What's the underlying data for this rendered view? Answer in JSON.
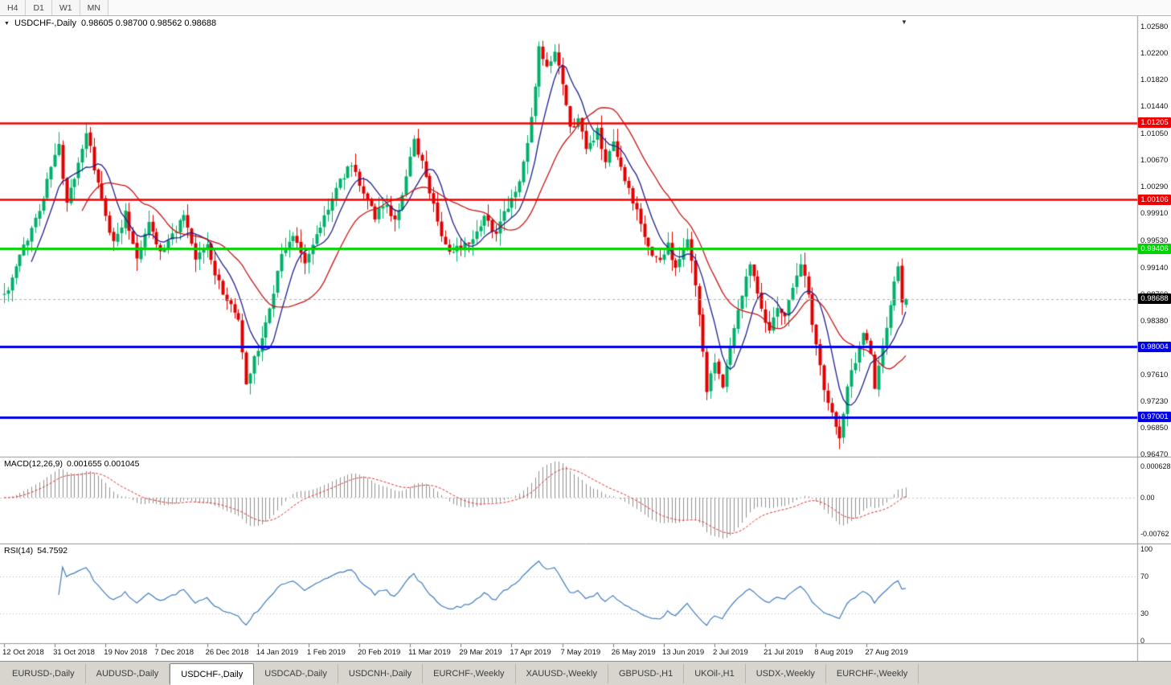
{
  "toolbar": {
    "timeframes": [
      "H4",
      "D1",
      "W1",
      "MN"
    ]
  },
  "chart": {
    "symbol_label": "USDCHF-,Daily",
    "ohlc_label": "0.98605 0.98700 0.98562 0.98688"
  },
  "macd_panel": {
    "label": "MACD(12,26,9)",
    "values_label": "0.001655 0.001045",
    "axis_labels": [
      "0.0006286",
      "0.00",
      "-0.00762"
    ]
  },
  "rsi_panel": {
    "label": "RSI(14)",
    "value_label": "54.7592",
    "axis_labels": [
      "100",
      "70",
      "30",
      "0"
    ]
  },
  "tabs": {
    "active_index": 2,
    "items": [
      "EURUSD-,Daily",
      "AUDUSD-,Daily",
      "USDCHF-,Daily",
      "USDCAD-,Daily",
      "USDCNH-,Daily",
      "EURCHF-,Weekly",
      "XAUUSD-,Weekly",
      "GBPUSD-,H1",
      "UKOil-,H1",
      "USDX-,Weekly",
      "EURCHF-,Weekly"
    ],
    "active_label": "USDCHF-,Daily"
  },
  "chart_data": {
    "type": "candlestick",
    "symbol": "USDCHF",
    "timeframe": "Daily",
    "ohlc": {
      "open": 0.98605,
      "high": 0.987,
      "low": 0.98562,
      "close": 0.98688
    },
    "current_price": 0.98688,
    "current_price_label": "0.98688",
    "y_ticks": [
      "1.02580",
      "1.02200",
      "1.01820",
      "1.01440",
      "1.01050",
      "1.00670",
      "1.00290",
      "0.99910",
      "0.99530",
      "0.99140",
      "0.98760",
      "0.98380",
      "0.98000",
      "0.97610",
      "0.97230",
      "0.96850",
      "0.96470"
    ],
    "x_labels": [
      "12 Oct 2018",
      "31 Oct 2018",
      "19 Nov 2018",
      "7 Dec 2018",
      "26 Dec 2018",
      "14 Jan 2019",
      "1 Feb 2019",
      "20 Feb 2019",
      "11 Mar 2019",
      "29 Mar 2019",
      "17 Apr 2019",
      "7 May 2019",
      "26 May 2019",
      "13 Jun 2019",
      "2 Jul 2019",
      "21 Jul 2019",
      "8 Aug 2019",
      "27 Aug 2019"
    ],
    "candles_per_xlabel": 13,
    "candle_count": 232,
    "price_range_labels": [
      0.9647,
      1.0258
    ],
    "horizontal_lines": [
      {
        "price": 1.01205,
        "label": "1.01205",
        "color": "#ee0000",
        "width": 2.5
      },
      {
        "price": 1.00106,
        "label": "1.00106",
        "color": "#ee0000",
        "width": 2.5
      },
      {
        "price": 0.99406,
        "label": "0.99406",
        "color": "#00d400",
        "width": 3
      },
      {
        "price": 0.98004,
        "label": "0.98004",
        "color": "#0000e6",
        "width": 3
      },
      {
        "price": 0.97001,
        "label": "0.97001",
        "color": "#0000e6",
        "width": 3
      }
    ],
    "colors": {
      "up": "#00b06a",
      "down": "#e00000"
    },
    "moving_averages": [
      {
        "period": 8,
        "color": "#1e1e8f"
      },
      {
        "period": 21,
        "color": "#c81414"
      }
    ],
    "macd": {
      "fast": 12,
      "slow": 26,
      "signal_period": 9,
      "current": 0.001655,
      "current_signal": 0.001045,
      "histogram_color": "#8f8f8f",
      "signal_color": "#e03030"
    },
    "rsi": {
      "period": 14,
      "current": 54.7592,
      "levels": [
        70,
        30
      ],
      "color": "#3f7cc0"
    },
    "seed": 42,
    "waypoints": [
      [
        0,
        0.9875
      ],
      [
        2,
        0.9895
      ],
      [
        4,
        0.993
      ],
      [
        6,
        0.9955
      ],
      [
        8,
        0.9985
      ],
      [
        10,
        1.0015
      ],
      [
        12,
        1.006
      ],
      [
        14,
        1.0085
      ],
      [
        16,
        1.0005
      ],
      [
        18,
        1.004
      ],
      [
        21,
        1.0108
      ],
      [
        23,
        1.0055
      ],
      [
        26,
        0.9985
      ],
      [
        28,
        0.995
      ],
      [
        31,
        0.999
      ],
      [
        34,
        0.993
      ],
      [
        37,
        0.998
      ],
      [
        40,
        0.9935
      ],
      [
        43,
        0.996
      ],
      [
        46,
        0.9985
      ],
      [
        49,
        0.9925
      ],
      [
        52,
        0.9945
      ],
      [
        55,
        0.989
      ],
      [
        58,
        0.9858
      ],
      [
        60,
        0.984
      ],
      [
        62,
        0.9745
      ],
      [
        64,
        0.9788
      ],
      [
        66,
        0.9812
      ],
      [
        68,
        0.9855
      ],
      [
        71,
        0.9935
      ],
      [
        74,
        0.9958
      ],
      [
        77,
        0.9922
      ],
      [
        80,
        0.996
      ],
      [
        83,
        1.0
      ],
      [
        86,
        1.0038
      ],
      [
        89,
        1.0062
      ],
      [
        92,
        1.0022
      ],
      [
        95,
        0.9988
      ],
      [
        98,
        1.0005
      ],
      [
        100,
        0.9978
      ],
      [
        103,
        1.0042
      ],
      [
        105,
        1.0092
      ],
      [
        107,
        1.0062
      ],
      [
        110,
        1.0005
      ],
      [
        112,
        0.9962
      ],
      [
        114,
        0.9932
      ],
      [
        117,
        0.9944
      ],
      [
        120,
        0.9958
      ],
      [
        123,
        0.9988
      ],
      [
        126,
        0.9962
      ],
      [
        129,
        1.0002
      ],
      [
        132,
        1.0035
      ],
      [
        134,
        1.009
      ],
      [
        136,
        1.017
      ],
      [
        137,
        1.0225
      ],
      [
        139,
        1.0195
      ],
      [
        141,
        1.0218
      ],
      [
        143,
        1.0175
      ],
      [
        145,
        1.011
      ],
      [
        147,
        1.0128
      ],
      [
        149,
        1.0082
      ],
      [
        152,
        1.0108
      ],
      [
        154,
        1.0062
      ],
      [
        156,
        1.0088
      ],
      [
        158,
        1.0052
      ],
      [
        160,
        1.0022
      ],
      [
        162,
        0.9992
      ],
      [
        164,
        0.9958
      ],
      [
        166,
        0.9932
      ],
      [
        168,
        0.9922
      ],
      [
        170,
        0.9948
      ],
      [
        172,
        0.9908
      ],
      [
        175,
        0.9958
      ],
      [
        177,
        0.9888
      ],
      [
        179,
        0.9795
      ],
      [
        180,
        0.9738
      ],
      [
        182,
        0.9778
      ],
      [
        184,
        0.9748
      ],
      [
        186,
        0.9802
      ],
      [
        188,
        0.9856
      ],
      [
        191,
        0.9922
      ],
      [
        193,
        0.9882
      ],
      [
        196,
        0.9818
      ],
      [
        198,
        0.9862
      ],
      [
        200,
        0.9842
      ],
      [
        202,
        0.9888
      ],
      [
        204,
        0.9922
      ],
      [
        206,
        0.9872
      ],
      [
        208,
        0.9802
      ],
      [
        210,
        0.9742
      ],
      [
        212,
        0.9706
      ],
      [
        214,
        0.9668
      ],
      [
        216,
        0.9742
      ],
      [
        218,
        0.9782
      ],
      [
        220,
        0.9822
      ],
      [
        222,
        0.9792
      ],
      [
        223,
        0.9738
      ],
      [
        225,
        0.9802
      ],
      [
        227,
        0.9858
      ],
      [
        229,
        0.9918
      ],
      [
        230,
        0.9862
      ],
      [
        231,
        0.9861
      ]
    ]
  }
}
